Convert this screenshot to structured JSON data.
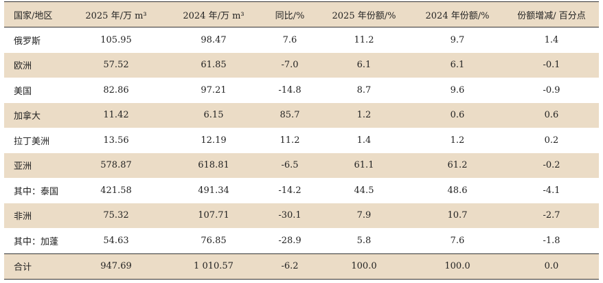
{
  "table": {
    "headers": [
      "国家/地区",
      "2025 年/万 m³",
      "2024 年/万 m³",
      "同比/%",
      "2025 年份额/%",
      "2024 年份额/%",
      "份额增减/ 百分点"
    ],
    "rows": [
      [
        "俄罗斯",
        "105.95",
        "98.47",
        "7.6",
        "11.2",
        "9.7",
        "1.4"
      ],
      [
        "欧洲",
        "57.52",
        "61.85",
        "-7.0",
        "6.1",
        "6.1",
        "-0.1"
      ],
      [
        "美国",
        "82.86",
        "97.21",
        "-14.8",
        "8.7",
        "9.6",
        "-0.9"
      ],
      [
        "加拿大",
        "11.42",
        "6.15",
        "85.7",
        "1.2",
        "0.6",
        "0.6"
      ],
      [
        "拉丁美洲",
        "13.56",
        "12.19",
        "11.2",
        "1.4",
        "1.2",
        "0.2"
      ],
      [
        "亚洲",
        "578.87",
        "618.81",
        "-6.5",
        "61.1",
        "61.2",
        "-0.2"
      ],
      [
        "其中：泰国",
        "421.58",
        "491.34",
        "-14.2",
        "44.5",
        "48.6",
        "-4.1"
      ],
      [
        "非洲",
        "75.32",
        "107.71",
        "-30.1",
        "7.9",
        "10.7",
        "-2.7"
      ],
      [
        "其中：加蓬",
        "54.63",
        "76.85",
        "-28.9",
        "5.8",
        "7.6",
        "-1.8"
      ]
    ],
    "total": [
      "合计",
      "947.69",
      "1 010.57",
      "-6.2",
      "100.0",
      "100.0",
      "0.0"
    ]
  },
  "colors": {
    "band": "#ebdcc6",
    "rule": "#333333",
    "text": "#222222"
  }
}
